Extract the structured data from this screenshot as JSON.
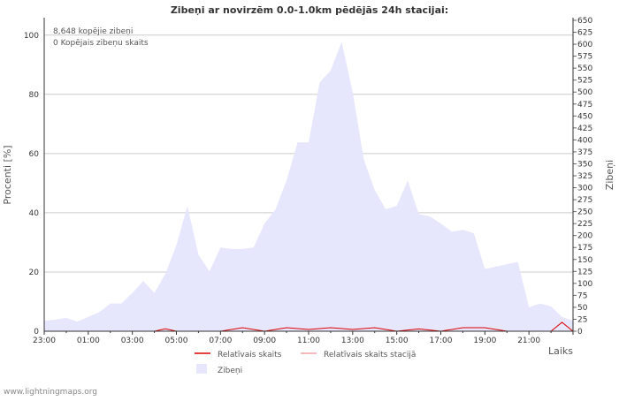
{
  "chart_data": {
    "type": "area",
    "title": "Zibeņi ar novirzēm 0.0-1.0km pēdējās 24h stacijai:",
    "xlabel": "Laiks",
    "ylabel_left": "Procenti   [%]",
    "ylabel_right": "Zibeņi",
    "annotations": [
      "8,648 kopējie zibeņi",
      "0 Kopējais zibeņu skaits"
    ],
    "watermark": "www.lightningmaps.org",
    "x_tick_labels": [
      "23:00",
      "01:00",
      "03:00",
      "05:00",
      "07:00",
      "09:00",
      "11:00",
      "13:00",
      "15:00",
      "17:00",
      "19:00",
      "21:00"
    ],
    "x_range_hours": [
      0,
      24
    ],
    "y_left": {
      "ylim": [
        0,
        105
      ],
      "ticks": [
        0,
        20,
        40,
        60,
        80,
        100
      ]
    },
    "y_right": {
      "ylim": [
        0,
        650
      ],
      "ticks": [
        0,
        25,
        50,
        75,
        100,
        125,
        150,
        175,
        200,
        225,
        250,
        275,
        300,
        325,
        350,
        375,
        400,
        425,
        450,
        475,
        500,
        525,
        550,
        575,
        600,
        625,
        650
      ]
    },
    "legend": {
      "placement": "bottom",
      "items": [
        {
          "label": "Relatīvais skaits",
          "color": "#dd0000",
          "kind": "line"
        },
        {
          "label": "Relatīvais skaits stacijā",
          "color": "#f4a0a0",
          "kind": "line"
        },
        {
          "label": "Zibeņi",
          "color": "#e6e6fc",
          "kind": "area"
        }
      ]
    },
    "series": [
      {
        "name": "Zibeņi",
        "axis": "right",
        "color": "#e6e6fc",
        "x": [
          0,
          0.5,
          1,
          1.5,
          2,
          2.5,
          3,
          3.5,
          4,
          4.5,
          5,
          5.5,
          6,
          6.5,
          7,
          7.5,
          8,
          8.5,
          9,
          9.5,
          10,
          10.5,
          11,
          11.5,
          12,
          12.5,
          13,
          13.5,
          14,
          14.5,
          15,
          15.5,
          16,
          16.5,
          17,
          17.5,
          18,
          18.5,
          19,
          19.5,
          20,
          20.5,
          21,
          21.5,
          22,
          22.5,
          23,
          23.5,
          24
        ],
        "values": [
          22,
          24,
          28,
          20,
          30,
          40,
          58,
          58,
          80,
          105,
          80,
          120,
          180,
          262,
          160,
          125,
          175,
          172,
          172,
          175,
          225,
          255,
          315,
          395,
          395,
          520,
          545,
          605,
          500,
          360,
          295,
          255,
          262,
          315,
          245,
          240,
          225,
          208,
          212,
          205,
          130,
          135,
          140,
          145,
          50,
          58,
          52,
          30,
          22
        ]
      },
      {
        "name": "Relatīvais skaits",
        "axis": "left",
        "color": "#dd0000",
        "x": [
          0,
          1,
          2,
          3,
          4,
          5,
          5.5,
          6,
          7,
          8,
          9,
          10,
          11,
          12,
          13,
          14,
          15,
          16,
          17,
          18,
          19,
          20,
          21,
          22,
          22.5,
          23,
          23.5,
          24
        ],
        "values": [
          0,
          0,
          0,
          0,
          0,
          0,
          0.8,
          0,
          0,
          0,
          1.2,
          0,
          1.2,
          0.6,
          1.2,
          0.6,
          1.2,
          0,
          0.8,
          0,
          1.2,
          1.2,
          0,
          0,
          0,
          0,
          3,
          0
        ]
      },
      {
        "name": "Relatīvais skaits stacijā",
        "axis": "left",
        "color": "#f4a0a0",
        "x": [
          0,
          24
        ],
        "values": [
          0,
          0
        ]
      }
    ]
  }
}
